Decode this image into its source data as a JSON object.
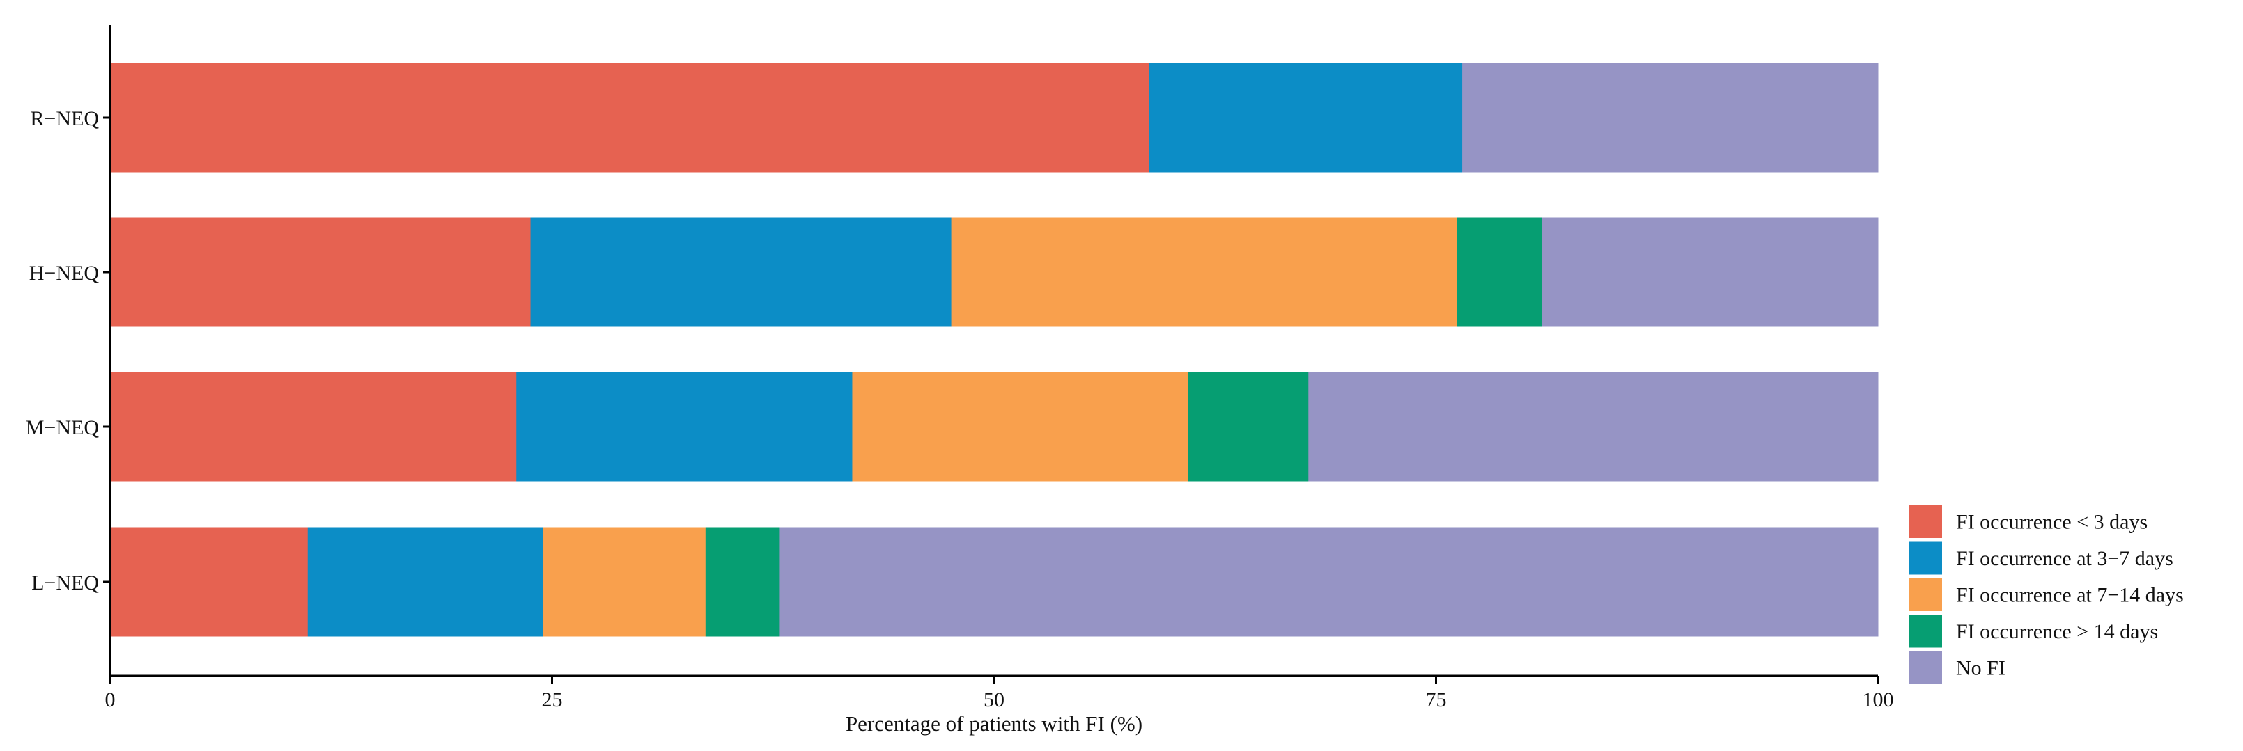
{
  "chart_data": {
    "type": "bar",
    "orientation": "horizontal",
    "stacked": true,
    "title": "",
    "xlabel": "Percentage of patients with FI (%)",
    "ylabel": "",
    "xlim": [
      0,
      100
    ],
    "xticks": [
      0,
      25,
      50,
      75,
      100
    ],
    "grid": false,
    "legend_position": "right-bottom",
    "categories": [
      "R−NEQ",
      "H−NEQ",
      "M−NEQ",
      "L−NEQ"
    ],
    "series": [
      {
        "name": "FI occurrence < 3 days",
        "color": "#E66251",
        "values": [
          58.8,
          23.8,
          23.0,
          11.2
        ]
      },
      {
        "name": "FI occurrence at 3−7 days",
        "color": "#0C8DC6",
        "values": [
          17.7,
          23.8,
          19.0,
          13.3
        ]
      },
      {
        "name": "FI occurrence at 7−14 days",
        "color": "#F9A04D",
        "values": [
          0,
          28.6,
          19.0,
          9.2
        ]
      },
      {
        "name": "FI occurrence > 14 days",
        "color": "#069E72",
        "values": [
          0,
          4.8,
          6.8,
          4.2
        ]
      },
      {
        "name": "No FI",
        "color": "#9694C5",
        "values": [
          23.5,
          19.0,
          32.2,
          62.1
        ]
      }
    ]
  }
}
